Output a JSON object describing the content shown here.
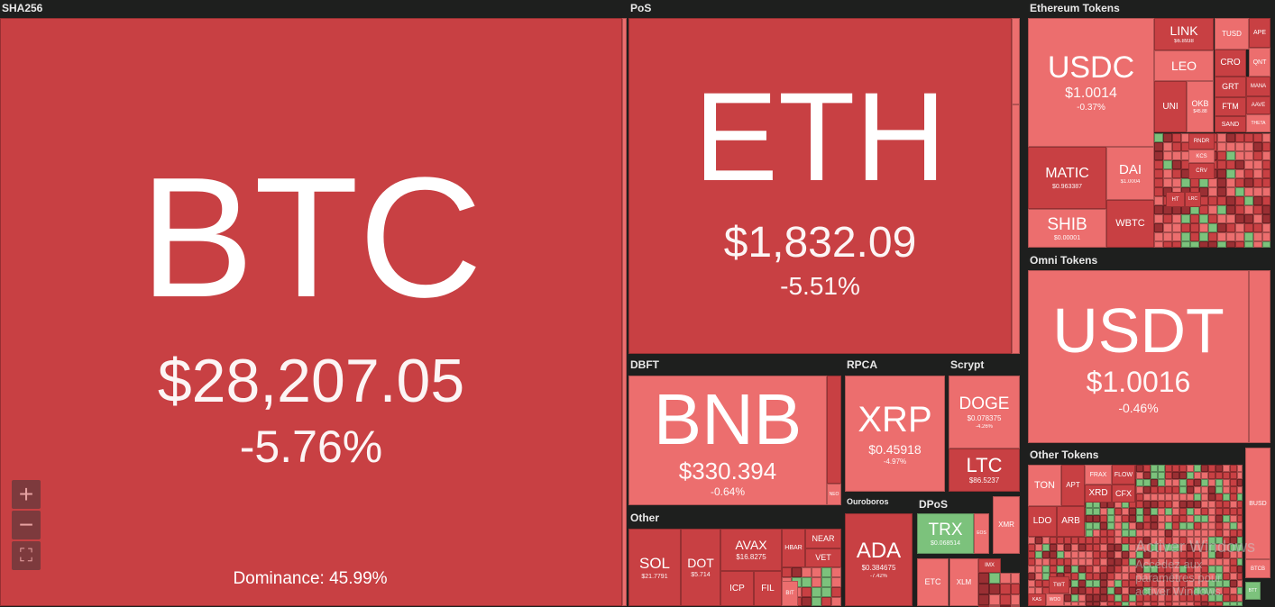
{
  "colors": {
    "background": "#1e1f1e",
    "down_strong": "#c84043",
    "down_weak": "#ec6e6e",
    "up": "#7cc27c"
  },
  "groups": {
    "sha256": "SHA256",
    "pos": "PoS",
    "dbft": "DBFT",
    "rpca": "RPCA",
    "scrypt": "Scrypt",
    "other": "Other",
    "ouroboros": "Ouroboros",
    "dpos": "DPoS",
    "eth_tokens": "Ethereum Tokens",
    "omni": "Omni Tokens",
    "other_tokens": "Other Tokens"
  },
  "coins": {
    "btc": {
      "symbol": "BTC",
      "price": "$28,207.05",
      "change": "-5.76%",
      "dominance": "Dominance: 45.99%"
    },
    "eth": {
      "symbol": "ETH",
      "price": "$1,832.09",
      "change": "-5.51%"
    },
    "bnb": {
      "symbol": "BNB",
      "price": "$330.394",
      "change": "-0.64%"
    },
    "neo": {
      "symbol": "NEO"
    },
    "xrp": {
      "symbol": "XRP",
      "price": "$0.45918",
      "change": "-4.97%"
    },
    "doge": {
      "symbol": "DOGE",
      "price": "$0.078375",
      "change": "-4.26%"
    },
    "ltc": {
      "symbol": "LTC",
      "price": "$86.5237"
    },
    "sol": {
      "symbol": "SOL",
      "price": "$21.7791"
    },
    "dot": {
      "symbol": "DOT",
      "price": "$5.714"
    },
    "avax": {
      "symbol": "AVAX",
      "price": "$16.8275"
    },
    "icp": {
      "symbol": "ICP"
    },
    "fil": {
      "symbol": "FIL"
    },
    "hbar": {
      "symbol": "HBAR"
    },
    "near": {
      "symbol": "NEAR"
    },
    "vet": {
      "symbol": "VET"
    },
    "bit": {
      "symbol": "BIT"
    },
    "ada": {
      "symbol": "ADA",
      "price": "$0.384675",
      "change": "-7.42%"
    },
    "trx": {
      "symbol": "TRX",
      "price": "$0.068514"
    },
    "eos": {
      "symbol": "EOS"
    },
    "xmr": {
      "symbol": "XMR"
    },
    "etc": {
      "symbol": "ETC"
    },
    "xlm": {
      "symbol": "XLM"
    },
    "imx": {
      "symbol": "IMX"
    },
    "usdc": {
      "symbol": "USDC",
      "price": "$1.0014",
      "change": "-0.37%"
    },
    "link": {
      "symbol": "LINK",
      "price": "$6.8938"
    },
    "leo": {
      "symbol": "LEO"
    },
    "uni": {
      "symbol": "UNI"
    },
    "okb": {
      "symbol": "OKB",
      "price": "$45.88"
    },
    "tusd": {
      "symbol": "TUSD"
    },
    "ape": {
      "symbol": "APE"
    },
    "cro": {
      "symbol": "CRO"
    },
    "qnt": {
      "symbol": "QNT"
    },
    "grt": {
      "symbol": "GRT"
    },
    "mana": {
      "symbol": "MANA"
    },
    "ftm": {
      "symbol": "FTM"
    },
    "aave": {
      "symbol": "AAVE"
    },
    "sand": {
      "symbol": "SAND"
    },
    "theta": {
      "symbol": "THETA"
    },
    "rndr": {
      "symbol": "RNDR"
    },
    "kcs": {
      "symbol": "KCS"
    },
    "crv": {
      "symbol": "CRV"
    },
    "ht": {
      "symbol": "HT"
    },
    "lrc": {
      "symbol": "LRC"
    },
    "matic": {
      "symbol": "MATIC",
      "price": "$0.963387"
    },
    "dai": {
      "symbol": "DAI",
      "price": "$1.0004"
    },
    "shib": {
      "symbol": "SHIB",
      "price": "$0.00001"
    },
    "wbtc": {
      "symbol": "WBTC"
    },
    "usdt": {
      "symbol": "USDT",
      "price": "$1.0016",
      "change": "-0.46%"
    },
    "ton": {
      "symbol": "TON"
    },
    "apt": {
      "symbol": "APT"
    },
    "frax": {
      "symbol": "FRAX"
    },
    "flow": {
      "symbol": "FLOW"
    },
    "xrd": {
      "symbol": "XRD"
    },
    "cfx": {
      "symbol": "CFX"
    },
    "ldo": {
      "symbol": "LDO"
    },
    "arb": {
      "symbol": "ARB"
    },
    "twt": {
      "symbol": "TWT"
    },
    "kas": {
      "symbol": "KAS"
    },
    "woo": {
      "symbol": "WOO"
    },
    "busd": {
      "symbol": "BUSD"
    },
    "btcb": {
      "symbol": "BTCB"
    },
    "btt": {
      "symbol": "BTT"
    }
  },
  "zoom_controls": {
    "zoom_in": "+",
    "zoom_out": "−",
    "fullscreen": "⛶"
  },
  "watermark": {
    "title": "Activer Windows",
    "subtitle": "Accédez aux paramètres pour activer Windows."
  }
}
